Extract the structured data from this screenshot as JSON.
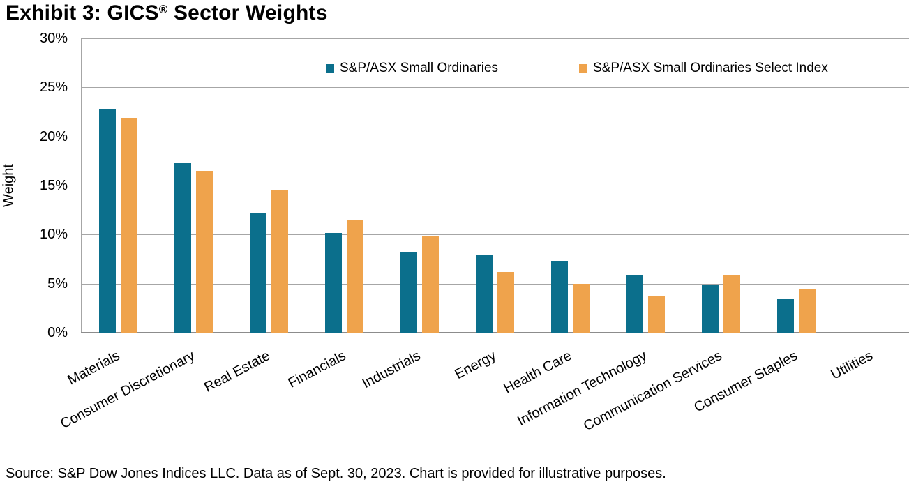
{
  "title": {
    "prefix": "Exhibit 3: GICS",
    "registered_mark": "®",
    "suffix": " Sector Weights"
  },
  "source": "Source: S&P Dow Jones Indices LLC. Data as of Sept. 30, 2023. Chart is provided for illustrative purposes.",
  "colors": {
    "series_1": "#0b6f8c",
    "series_2": "#efa34c",
    "gridline": "#a6a6a6",
    "axis": "#8c8c8c",
    "text": "#000000"
  },
  "chart_data": {
    "type": "bar",
    "title": "Exhibit 3: GICS® Sector Weights",
    "xlabel": "",
    "ylabel": "Weight",
    "ylim": [
      0,
      30
    ],
    "yticks": [
      0,
      5,
      10,
      15,
      20,
      25,
      30
    ],
    "ytick_labels": [
      "0%",
      "5%",
      "10%",
      "15%",
      "20%",
      "25%",
      "30%"
    ],
    "grid": true,
    "legend_position": "top-inside",
    "categories": [
      "Materials",
      "Consumer Discretionary",
      "Real Estate",
      "Financials",
      "Industrials",
      "Energy",
      "Health Care",
      "Information Technology",
      "Communication Services",
      "Consumer Staples",
      "Utilities"
    ],
    "series": [
      {
        "name": "S&P/ASX Small Ordinaries",
        "color": "#0b6f8c",
        "values": [
          22.8,
          17.3,
          12.2,
          10.2,
          8.2,
          7.9,
          7.3,
          5.8,
          4.9,
          3.4,
          0.0
        ]
      },
      {
        "name": "S&P/ASX Small Ordinaries Select Index",
        "color": "#efa34c",
        "values": [
          21.9,
          16.5,
          14.6,
          11.5,
          9.9,
          6.2,
          5.0,
          3.7,
          5.9,
          4.5,
          0.0
        ]
      }
    ]
  }
}
